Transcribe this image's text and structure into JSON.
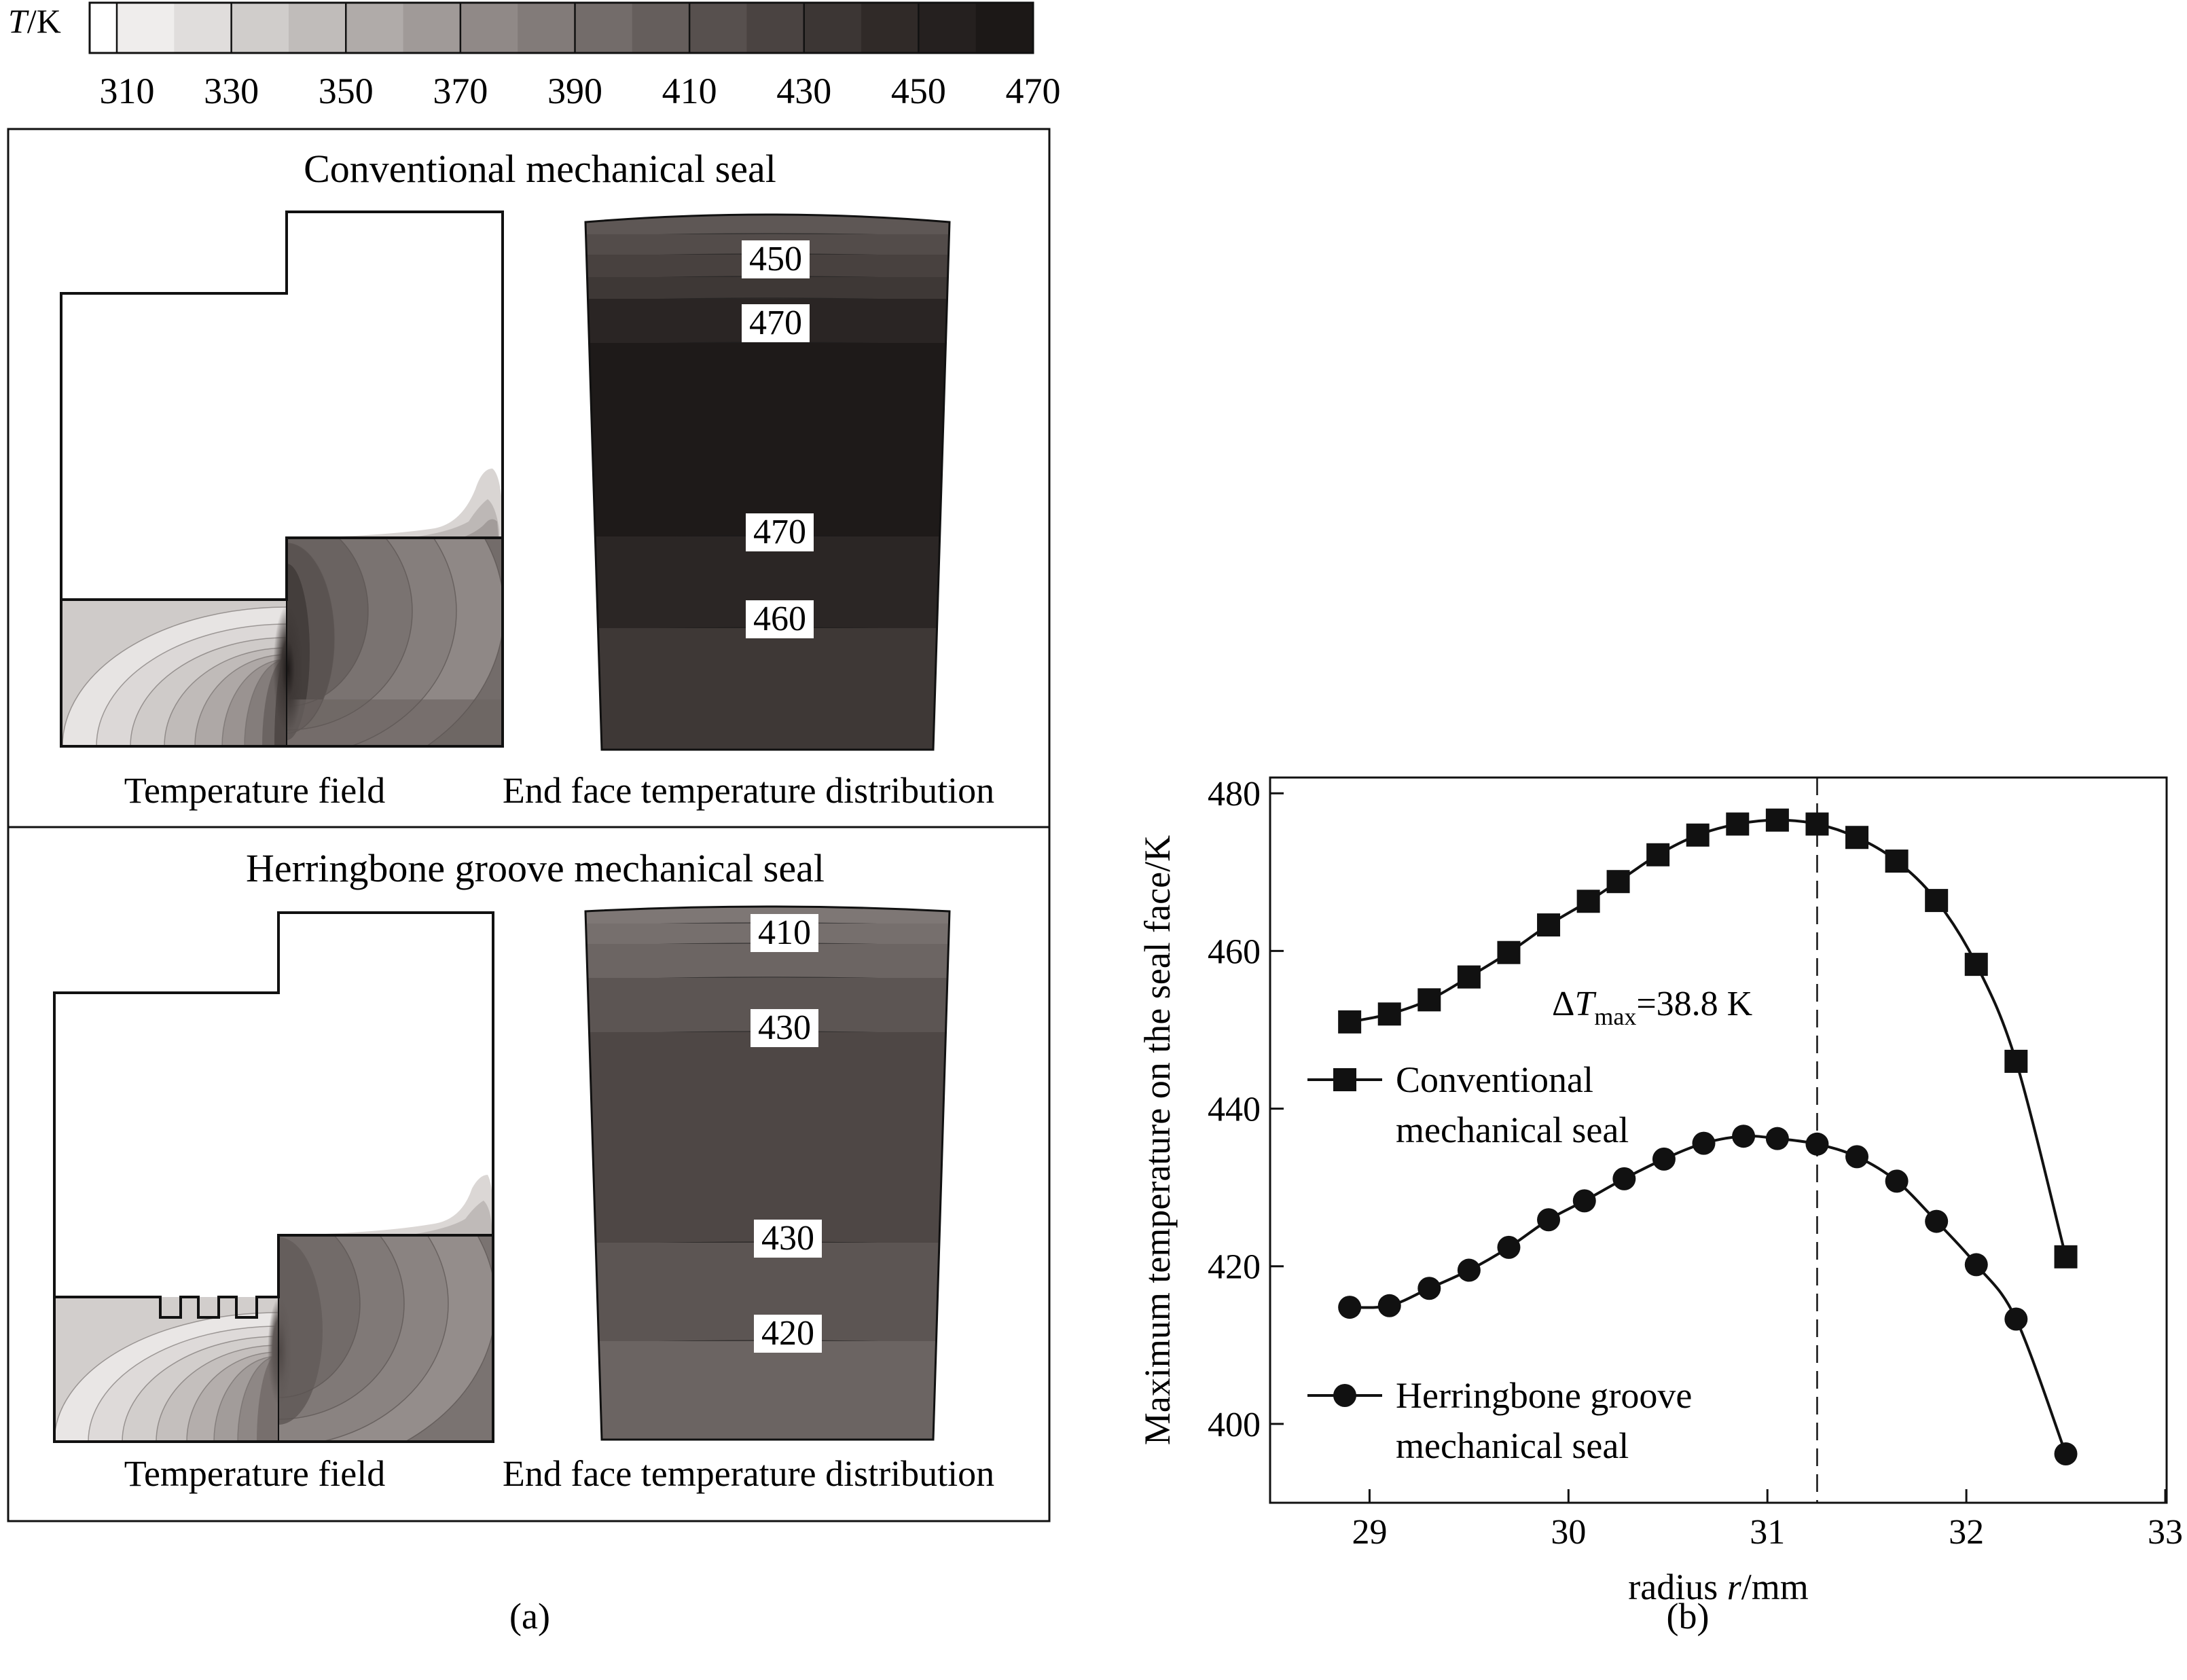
{
  "colorbar": {
    "label_T": "T",
    "label_unit": "/K",
    "ticks": [
      "310",
      "330",
      "350",
      "370",
      "390",
      "410",
      "430",
      "450",
      "470"
    ],
    "colors": [
      "#ffffff",
      "#efedec",
      "#e0dddc",
      "#d0cdcb",
      "#c0bcba",
      "#b0aba9",
      "#a09a98",
      "#908987",
      "#827b79",
      "#736c6a",
      "#655e5c",
      "#57504e",
      "#4a4341",
      "#3c3634",
      "#302a28",
      "#25201f",
      "#1c1817"
    ]
  },
  "panel_a": {
    "label": "(a)",
    "conventional": {
      "title": "Conventional mechanical seal",
      "field_caption": "Temperature field",
      "end_face_caption": "End face temperature distribution",
      "end_face_labels": [
        "450",
        "470",
        "470",
        "460"
      ]
    },
    "herringbone": {
      "title": "Herringbone groove mechanical seal",
      "field_caption": "Temperature field",
      "end_face_caption": "End face temperature distribution",
      "end_face_labels": [
        "410",
        "430",
        "430",
        "420"
      ]
    }
  },
  "chart_data": {
    "type": "line",
    "panel_label": "(b)",
    "xlabel_prefix": "radius ",
    "xlabel_var": "r",
    "xlabel_suffix": "/mm",
    "ylabel": "Maximum temperature on the seal face/K",
    "xlim": [
      28.5,
      33
    ],
    "ylim": [
      390,
      482
    ],
    "xticks": [
      29,
      30,
      31,
      32,
      33
    ],
    "yticks": [
      400,
      420,
      440,
      460,
      480
    ],
    "grid": false,
    "legend_position": "left",
    "annotation": {
      "delta": "ΔT",
      "sub": "max",
      "value": "=38.8 K",
      "line_x": 31.25
    },
    "series": [
      {
        "name_lines": [
          "Conventional",
          "mechanical seal"
        ],
        "marker": "square",
        "x": [
          28.9,
          29.1,
          29.3,
          29.5,
          29.7,
          29.9,
          30.1,
          30.25,
          30.45,
          30.65,
          30.85,
          31.05,
          31.25,
          31.45,
          31.65,
          31.85,
          32.05,
          32.25,
          32.5
        ],
        "y": [
          451,
          452,
          453.8,
          456.7,
          459.8,
          463.3,
          466.3,
          468.8,
          472.2,
          474.7,
          476.1,
          476.6,
          476.1,
          474.4,
          471.4,
          466.4,
          458.3,
          446,
          421.2
        ]
      },
      {
        "name_lines": [
          "Herringbone groove",
          "mechanical seal"
        ],
        "marker": "circle",
        "x": [
          28.9,
          29.1,
          29.3,
          29.5,
          29.7,
          29.9,
          30.08,
          30.28,
          30.48,
          30.68,
          30.88,
          31.05,
          31.25,
          31.45,
          31.65,
          31.85,
          32.05,
          32.25,
          32.5
        ],
        "y": [
          414.8,
          415,
          417.2,
          419.5,
          422.4,
          425.9,
          428.3,
          431.1,
          433.6,
          435.6,
          436.5,
          436.2,
          435.5,
          433.9,
          430.8,
          425.7,
          420.2,
          413.3,
          396.2
        ]
      }
    ]
  }
}
